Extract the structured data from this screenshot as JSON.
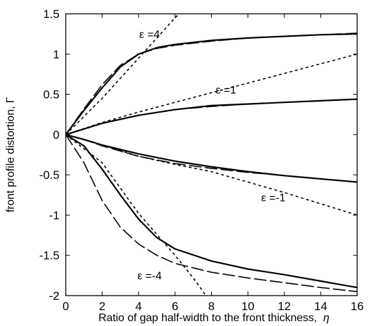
{
  "chart_data": {
    "type": "line",
    "xlabel": "Ratio of gap half-width to the front thickness,",
    "xlabel_symbol": "η",
    "ylabel": "front profile distortion, Γ",
    "xlim": [
      0,
      16
    ],
    "ylim": [
      -2,
      1.5
    ],
    "x_ticks": [
      "0",
      "2",
      "4",
      "6",
      "8",
      "10",
      "12",
      "14",
      "16"
    ],
    "y_ticks": [
      "1.5",
      "1",
      "0.5",
      "0",
      "-0.5",
      "-1",
      "-1.5",
      "-2"
    ],
    "x_tick_values": [
      0,
      2,
      4,
      6,
      8,
      10,
      12,
      14,
      16
    ],
    "y_tick_values": [
      1.5,
      1,
      0.5,
      0,
      -0.5,
      -1,
      -1.5,
      -2
    ],
    "grid": false,
    "legend": "none",
    "annotations": [
      {
        "text": "ε =4",
        "x": 4.6,
        "y": 1.2
      },
      {
        "text": "ε =1",
        "x": 8.8,
        "y": 0.51
      },
      {
        "text": "ε =-1",
        "x": 11.4,
        "y": -0.83
      },
      {
        "text": "ε =-4",
        "x": 4.6,
        "y": -1.8
      }
    ],
    "series": [
      {
        "style": "solid",
        "points": [
          [
            0,
            0
          ],
          [
            1,
            0.3
          ],
          [
            2,
            0.58
          ],
          [
            3,
            0.84
          ],
          [
            4,
            1.0
          ],
          [
            5,
            1.08
          ],
          [
            6,
            1.12
          ],
          [
            8,
            1.17
          ],
          [
            10,
            1.2
          ],
          [
            12,
            1.22
          ],
          [
            14,
            1.24
          ],
          [
            16,
            1.25
          ]
        ]
      },
      {
        "style": "dashed",
        "points": [
          [
            0,
            0
          ],
          [
            1,
            0.32
          ],
          [
            2,
            0.62
          ],
          [
            3,
            0.86
          ],
          [
            4,
            1.0
          ],
          [
            5,
            1.07
          ],
          [
            6,
            1.11
          ],
          [
            8,
            1.16
          ],
          [
            10,
            1.2
          ],
          [
            12,
            1.22
          ],
          [
            14,
            1.24
          ],
          [
            16,
            1.26
          ]
        ]
      },
      {
        "style": "dotted",
        "points": [
          [
            0,
            0
          ],
          [
            2,
            0.45
          ],
          [
            4,
            0.95
          ],
          [
            5,
            1.2
          ],
          [
            6,
            1.45
          ],
          [
            6.3,
            1.52
          ]
        ]
      },
      {
        "style": "solid",
        "points": [
          [
            0,
            0
          ],
          [
            1,
            0.07
          ],
          [
            2,
            0.14
          ],
          [
            4,
            0.24
          ],
          [
            6,
            0.31
          ],
          [
            8,
            0.36
          ],
          [
            10,
            0.38
          ],
          [
            12,
            0.4
          ],
          [
            14,
            0.42
          ],
          [
            16,
            0.44
          ]
        ]
      },
      {
        "style": "dashed",
        "points": [
          [
            0,
            0
          ],
          [
            1,
            0.07
          ],
          [
            2,
            0.14
          ],
          [
            4,
            0.24
          ],
          [
            6,
            0.31
          ],
          [
            8,
            0.35
          ],
          [
            10,
            0.38
          ],
          [
            12,
            0.4
          ],
          [
            14,
            0.42
          ],
          [
            16,
            0.44
          ]
        ]
      },
      {
        "style": "dotted",
        "points": [
          [
            0,
            0
          ],
          [
            2,
            0.15
          ],
          [
            4,
            0.28
          ],
          [
            6,
            0.4
          ],
          [
            8,
            0.52
          ],
          [
            10,
            0.64
          ],
          [
            12,
            0.76
          ],
          [
            14,
            0.88
          ],
          [
            16,
            1.0
          ]
        ]
      },
      {
        "style": "solid",
        "points": [
          [
            0,
            0
          ],
          [
            1,
            -0.06
          ],
          [
            2,
            -0.13
          ],
          [
            4,
            -0.24
          ],
          [
            6,
            -0.33
          ],
          [
            8,
            -0.4
          ],
          [
            10,
            -0.46
          ],
          [
            12,
            -0.51
          ],
          [
            14,
            -0.55
          ],
          [
            16,
            -0.59
          ]
        ]
      },
      {
        "style": "dashed",
        "points": [
          [
            0,
            0
          ],
          [
            1,
            -0.06
          ],
          [
            2,
            -0.14
          ],
          [
            4,
            -0.27
          ],
          [
            6,
            -0.36
          ],
          [
            8,
            -0.42
          ],
          [
            10,
            -0.47
          ],
          [
            12,
            -0.51
          ],
          [
            14,
            -0.55
          ],
          [
            16,
            -0.59
          ]
        ]
      },
      {
        "style": "dotted",
        "points": [
          [
            0,
            0
          ],
          [
            2,
            -0.13
          ],
          [
            4,
            -0.27
          ],
          [
            6,
            -0.37
          ],
          [
            8,
            -0.46
          ],
          [
            10,
            -0.59
          ],
          [
            12,
            -0.72
          ],
          [
            14,
            -0.86
          ],
          [
            16,
            -1.0
          ]
        ]
      },
      {
        "style": "solid",
        "points": [
          [
            0,
            0
          ],
          [
            1,
            -0.14
          ],
          [
            2,
            -0.43
          ],
          [
            3,
            -0.75
          ],
          [
            4,
            -1.05
          ],
          [
            5,
            -1.28
          ],
          [
            6,
            -1.42
          ],
          [
            8,
            -1.57
          ],
          [
            10,
            -1.67
          ],
          [
            12,
            -1.74
          ],
          [
            14,
            -1.82
          ],
          [
            16,
            -1.9
          ]
        ]
      },
      {
        "style": "dashed",
        "points": [
          [
            0,
            0
          ],
          [
            1,
            -0.35
          ],
          [
            2,
            -0.82
          ],
          [
            3,
            -1.15
          ],
          [
            4,
            -1.36
          ],
          [
            5,
            -1.5
          ],
          [
            6,
            -1.6
          ],
          [
            8,
            -1.71
          ],
          [
            10,
            -1.78
          ],
          [
            12,
            -1.84
          ],
          [
            14,
            -1.9
          ],
          [
            16,
            -1.95
          ]
        ]
      },
      {
        "style": "dotted",
        "points": [
          [
            0,
            0
          ],
          [
            2,
            -0.35
          ],
          [
            4,
            -0.98
          ],
          [
            6,
            -1.5
          ],
          [
            7,
            -1.78
          ],
          [
            7.7,
            -2.0
          ]
        ]
      }
    ]
  }
}
